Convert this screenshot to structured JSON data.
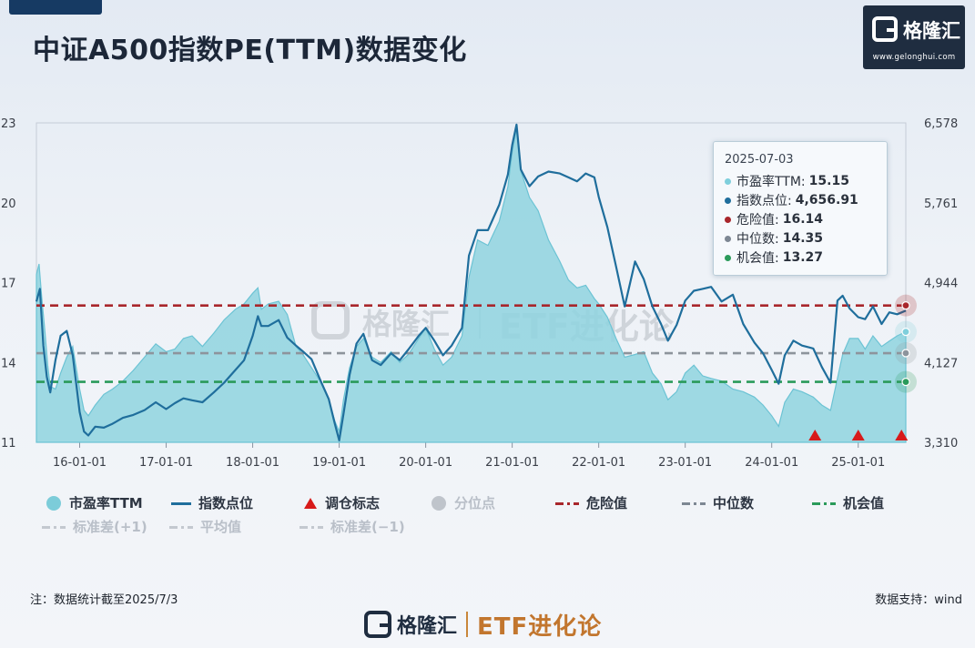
{
  "title": "中证A500指数PE(TTM)数据变化",
  "logo": {
    "name": "格隆汇",
    "url": "www.gelonghui.com"
  },
  "watermark": {
    "brand": "格隆汇",
    "tag": "ETF进化论"
  },
  "tooltip": {
    "date": "2025-07-03",
    "rows": [
      {
        "label": "市盈率TTM:",
        "value": "15.15",
        "color": "#7fcfdc"
      },
      {
        "label": "指数点位:",
        "value": "4,656.91",
        "color": "#1f6e9c"
      },
      {
        "label": "危险值:",
        "value": "16.14",
        "color": "#a8262b"
      },
      {
        "label": "中位数:",
        "value": "14.35",
        "color": "#7d8793"
      },
      {
        "label": "机会值:",
        "value": "13.27",
        "color": "#2a9a5a"
      }
    ]
  },
  "legend": {
    "row1": [
      "市盈率TTM",
      "指数点位",
      "调仓标志",
      "分位点",
      "危险值",
      "中位数",
      "机会值"
    ],
    "row2": [
      "标准差(+1)",
      "平均值",
      "标准差(−1)"
    ]
  },
  "note": "注：数据统计截至2025/7/3",
  "source": "数据支持：wind",
  "colors": {
    "pe_fill": "#8fd3df",
    "pe_line": "#6cc3d4",
    "index_line": "#1f6e9c",
    "danger": "#a8262b",
    "median": "#8d949c",
    "opportunity": "#2a9a5a",
    "rebalance": "#d71a1a"
  },
  "chart_data": {
    "type": "area",
    "y_left_ticks": [
      "23",
      "20",
      "17",
      "14",
      "11"
    ],
    "y_right_ticks": [
      "6,578",
      "5,761",
      "4,944",
      "4,127",
      "3,310"
    ],
    "ylim_left": [
      11,
      23
    ],
    "ylim_right": [
      3310,
      6578
    ],
    "x_ticks": [
      "16-01-01",
      "17-01-01",
      "18-01-01",
      "19-01-01",
      "20-01-01",
      "21-01-01",
      "22-01-01",
      "23-01-01",
      "24-01-01",
      "25-01-01"
    ],
    "x_tick_years": [
      2016,
      2017,
      2018,
      2019,
      2020,
      2021,
      2022,
      2023,
      2024,
      2025
    ],
    "x_range": [
      2015.5,
      2025.55
    ],
    "reference_lines": {
      "danger": 16.14,
      "median": 14.35,
      "opportunity": 13.27
    },
    "rebalance_markers": [
      2024.5,
      2025.0,
      2025.5
    ],
    "series": [
      {
        "name": "市盈率TTM",
        "points": [
          [
            2015.5,
            17.3
          ],
          [
            2015.53,
            17.7
          ],
          [
            2015.56,
            16.5
          ],
          [
            2015.6,
            15.1
          ],
          [
            2015.63,
            13.9
          ],
          [
            2015.66,
            13.1
          ],
          [
            2015.72,
            13.0
          ],
          [
            2015.78,
            13.6
          ],
          [
            2015.85,
            14.2
          ],
          [
            2015.92,
            14.6
          ],
          [
            2016.0,
            13.0
          ],
          [
            2016.05,
            12.2
          ],
          [
            2016.1,
            12.0
          ],
          [
            2016.18,
            12.4
          ],
          [
            2016.28,
            12.8
          ],
          [
            2016.38,
            13.0
          ],
          [
            2016.5,
            13.3
          ],
          [
            2016.62,
            13.7
          ],
          [
            2016.75,
            14.2
          ],
          [
            2016.88,
            14.7
          ],
          [
            2017.0,
            14.4
          ],
          [
            2017.1,
            14.5
          ],
          [
            2017.2,
            14.9
          ],
          [
            2017.3,
            15.0
          ],
          [
            2017.42,
            14.6
          ],
          [
            2017.55,
            15.1
          ],
          [
            2017.67,
            15.6
          ],
          [
            2017.8,
            16.0
          ],
          [
            2017.9,
            16.2
          ],
          [
            2018.0,
            16.6
          ],
          [
            2018.06,
            16.8
          ],
          [
            2018.1,
            16.0
          ],
          [
            2018.18,
            16.2
          ],
          [
            2018.3,
            16.3
          ],
          [
            2018.4,
            15.8
          ],
          [
            2018.5,
            14.6
          ],
          [
            2018.58,
            14.3
          ],
          [
            2018.68,
            13.8
          ],
          [
            2018.78,
            13.3
          ],
          [
            2018.88,
            12.6
          ],
          [
            2018.95,
            11.8
          ],
          [
            2019.0,
            11.4
          ],
          [
            2019.05,
            12.6
          ],
          [
            2019.12,
            13.8
          ],
          [
            2019.2,
            14.6
          ],
          [
            2019.28,
            14.9
          ],
          [
            2019.38,
            14.2
          ],
          [
            2019.48,
            14.0
          ],
          [
            2019.6,
            14.4
          ],
          [
            2019.7,
            14.0
          ],
          [
            2019.8,
            14.3
          ],
          [
            2019.92,
            14.9
          ],
          [
            2020.0,
            15.3
          ],
          [
            2020.1,
            14.5
          ],
          [
            2020.2,
            13.9
          ],
          [
            2020.3,
            14.2
          ],
          [
            2020.42,
            15.0
          ],
          [
            2020.5,
            17.2
          ],
          [
            2020.6,
            18.6
          ],
          [
            2020.72,
            18.4
          ],
          [
            2020.85,
            19.3
          ],
          [
            2020.95,
            20.6
          ],
          [
            2021.0,
            21.9
          ],
          [
            2021.05,
            22.8
          ],
          [
            2021.1,
            21.2
          ],
          [
            2021.2,
            20.2
          ],
          [
            2021.3,
            19.7
          ],
          [
            2021.42,
            18.6
          ],
          [
            2021.55,
            17.8
          ],
          [
            2021.65,
            17.1
          ],
          [
            2021.75,
            16.8
          ],
          [
            2021.85,
            16.9
          ],
          [
            2021.95,
            16.4
          ],
          [
            2022.0,
            16.2
          ],
          [
            2022.1,
            15.7
          ],
          [
            2022.2,
            14.9
          ],
          [
            2022.3,
            14.2
          ],
          [
            2022.42,
            14.3
          ],
          [
            2022.52,
            14.4
          ],
          [
            2022.62,
            13.6
          ],
          [
            2022.72,
            13.2
          ],
          [
            2022.8,
            12.6
          ],
          [
            2022.9,
            12.9
          ],
          [
            2023.0,
            13.6
          ],
          [
            2023.1,
            13.9
          ],
          [
            2023.2,
            13.5
          ],
          [
            2023.3,
            13.4
          ],
          [
            2023.42,
            13.3
          ],
          [
            2023.55,
            13.0
          ],
          [
            2023.67,
            12.9
          ],
          [
            2023.8,
            12.7
          ],
          [
            2023.9,
            12.4
          ],
          [
            2024.0,
            12.0
          ],
          [
            2024.08,
            11.6
          ],
          [
            2024.15,
            12.5
          ],
          [
            2024.25,
            13.0
          ],
          [
            2024.35,
            12.9
          ],
          [
            2024.48,
            12.7
          ],
          [
            2024.58,
            12.4
          ],
          [
            2024.68,
            12.2
          ],
          [
            2024.76,
            13.4
          ],
          [
            2024.82,
            14.3
          ],
          [
            2024.9,
            14.9
          ],
          [
            2025.0,
            14.9
          ],
          [
            2025.08,
            14.5
          ],
          [
            2025.17,
            15.0
          ],
          [
            2025.27,
            14.6
          ],
          [
            2025.36,
            14.8
          ],
          [
            2025.45,
            15.0
          ],
          [
            2025.55,
            15.15
          ]
        ]
      },
      {
        "name": "指数点位",
        "points": [
          [
            2015.5,
            4750
          ],
          [
            2015.54,
            4880
          ],
          [
            2015.58,
            4300
          ],
          [
            2015.62,
            3980
          ],
          [
            2015.66,
            3820
          ],
          [
            2015.72,
            4150
          ],
          [
            2015.78,
            4400
          ],
          [
            2015.85,
            4450
          ],
          [
            2015.92,
            4200
          ],
          [
            2016.0,
            3620
          ],
          [
            2016.05,
            3420
          ],
          [
            2016.1,
            3380
          ],
          [
            2016.18,
            3470
          ],
          [
            2016.28,
            3460
          ],
          [
            2016.38,
            3500
          ],
          [
            2016.5,
            3560
          ],
          [
            2016.62,
            3590
          ],
          [
            2016.75,
            3640
          ],
          [
            2016.88,
            3720
          ],
          [
            2017.0,
            3650
          ],
          [
            2017.1,
            3710
          ],
          [
            2017.2,
            3760
          ],
          [
            2017.3,
            3740
          ],
          [
            2017.42,
            3720
          ],
          [
            2017.55,
            3820
          ],
          [
            2017.67,
            3920
          ],
          [
            2017.8,
            4050
          ],
          [
            2017.9,
            4150
          ],
          [
            2018.0,
            4400
          ],
          [
            2018.06,
            4600
          ],
          [
            2018.1,
            4500
          ],
          [
            2018.18,
            4500
          ],
          [
            2018.3,
            4560
          ],
          [
            2018.4,
            4380
          ],
          [
            2018.5,
            4300
          ],
          [
            2018.58,
            4240
          ],
          [
            2018.68,
            4160
          ],
          [
            2018.78,
            3950
          ],
          [
            2018.88,
            3750
          ],
          [
            2018.95,
            3500
          ],
          [
            2019.0,
            3330
          ],
          [
            2019.05,
            3600
          ],
          [
            2019.12,
            4000
          ],
          [
            2019.2,
            4320
          ],
          [
            2019.28,
            4420
          ],
          [
            2019.38,
            4150
          ],
          [
            2019.48,
            4100
          ],
          [
            2019.6,
            4220
          ],
          [
            2019.7,
            4150
          ],
          [
            2019.8,
            4260
          ],
          [
            2019.92,
            4400
          ],
          [
            2020.0,
            4480
          ],
          [
            2020.1,
            4350
          ],
          [
            2020.2,
            4200
          ],
          [
            2020.3,
            4300
          ],
          [
            2020.42,
            4480
          ],
          [
            2020.5,
            5220
          ],
          [
            2020.6,
            5480
          ],
          [
            2020.72,
            5480
          ],
          [
            2020.85,
            5740
          ],
          [
            2020.95,
            6050
          ],
          [
            2021.0,
            6350
          ],
          [
            2021.05,
            6560
          ],
          [
            2021.1,
            6100
          ],
          [
            2021.2,
            5930
          ],
          [
            2021.3,
            6030
          ],
          [
            2021.42,
            6080
          ],
          [
            2021.55,
            6060
          ],
          [
            2021.65,
            6020
          ],
          [
            2021.75,
            5980
          ],
          [
            2021.85,
            6060
          ],
          [
            2021.95,
            6020
          ],
          [
            2022.0,
            5820
          ],
          [
            2022.1,
            5510
          ],
          [
            2022.2,
            5110
          ],
          [
            2022.3,
            4700
          ],
          [
            2022.42,
            5160
          ],
          [
            2022.52,
            4980
          ],
          [
            2022.62,
            4700
          ],
          [
            2022.72,
            4520
          ],
          [
            2022.8,
            4350
          ],
          [
            2022.9,
            4510
          ],
          [
            2023.0,
            4760
          ],
          [
            2023.1,
            4860
          ],
          [
            2023.2,
            4880
          ],
          [
            2023.3,
            4900
          ],
          [
            2023.42,
            4750
          ],
          [
            2023.55,
            4820
          ],
          [
            2023.67,
            4520
          ],
          [
            2023.8,
            4330
          ],
          [
            2023.9,
            4220
          ],
          [
            2024.0,
            4050
          ],
          [
            2024.08,
            3910
          ],
          [
            2024.15,
            4200
          ],
          [
            2024.25,
            4350
          ],
          [
            2024.35,
            4300
          ],
          [
            2024.48,
            4270
          ],
          [
            2024.58,
            4080
          ],
          [
            2024.68,
            3920
          ],
          [
            2024.76,
            4760
          ],
          [
            2024.82,
            4810
          ],
          [
            2024.9,
            4680
          ],
          [
            2025.0,
            4590
          ],
          [
            2025.08,
            4570
          ],
          [
            2025.17,
            4700
          ],
          [
            2025.27,
            4520
          ],
          [
            2025.36,
            4640
          ],
          [
            2025.45,
            4620
          ],
          [
            2025.55,
            4656.91
          ]
        ]
      }
    ]
  }
}
